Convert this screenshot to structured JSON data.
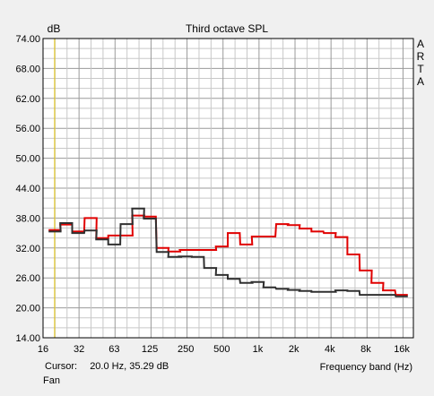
{
  "chart_data": {
    "type": "line",
    "step": true,
    "title": "Third octave SPL",
    "ylabel": "dB",
    "xlabel": "Frequency band (Hz)",
    "xscale": "log",
    "xlim": [
      16,
      20000
    ],
    "ylim": [
      14,
      74
    ],
    "yticks": [
      14,
      20,
      26,
      32,
      38,
      44,
      50,
      56,
      62,
      68,
      74
    ],
    "ytick_labels": [
      "14.00",
      "20.00",
      "26.00",
      "32.00",
      "38.00",
      "44.00",
      "50.00",
      "56.00",
      "62.00",
      "68.00",
      "74.00"
    ],
    "xtick_labels": [
      "16",
      "32",
      "63",
      "125",
      "250",
      "500",
      "1k",
      "2k",
      "4k",
      "8k",
      "16k"
    ],
    "xtick_values": [
      16,
      32,
      63,
      125,
      250,
      500,
      1000,
      2000,
      4000,
      8000,
      16000
    ],
    "grid": true,
    "x": [
      20,
      25,
      31.5,
      40,
      50,
      63,
      80,
      100,
      125,
      160,
      200,
      250,
      315,
      400,
      500,
      630,
      800,
      1000,
      1250,
      1600,
      2000,
      2500,
      3150,
      4000,
      5000,
      6300,
      8000,
      10000,
      12500,
      16000
    ],
    "series": [
      {
        "color": "#e00000",
        "values": [
          35.6,
          36.7,
          35.3,
          38.0,
          34.0,
          34.5,
          34.5,
          38.5,
          38.3,
          32.0,
          31.3,
          31.6,
          31.6,
          31.6,
          32.3,
          35.0,
          32.7,
          34.3,
          34.3,
          36.8,
          36.6,
          35.9,
          35.3,
          35.0,
          34.2,
          30.7,
          27.5,
          25.0,
          23.5,
          22.6
        ]
      },
      {
        "color": "#303030",
        "values": [
          35.3,
          37.0,
          35.0,
          35.5,
          33.7,
          32.7,
          36.8,
          39.9,
          37.9,
          31.2,
          30.2,
          30.3,
          30.2,
          28.0,
          26.6,
          25.8,
          25.0,
          25.2,
          24.1,
          23.8,
          23.6,
          23.4,
          23.2,
          23.2,
          23.5,
          23.4,
          22.6,
          22.6,
          22.6,
          22.3
        ]
      }
    ]
  },
  "arta_logo": [
    "A",
    "R",
    "T",
    "A"
  ],
  "cursor": {
    "label": "Cursor:",
    "value": "20.0 Hz, 35.29 dB",
    "x": 20,
    "color": "#e0c000"
  },
  "measurement_name": "Fan"
}
